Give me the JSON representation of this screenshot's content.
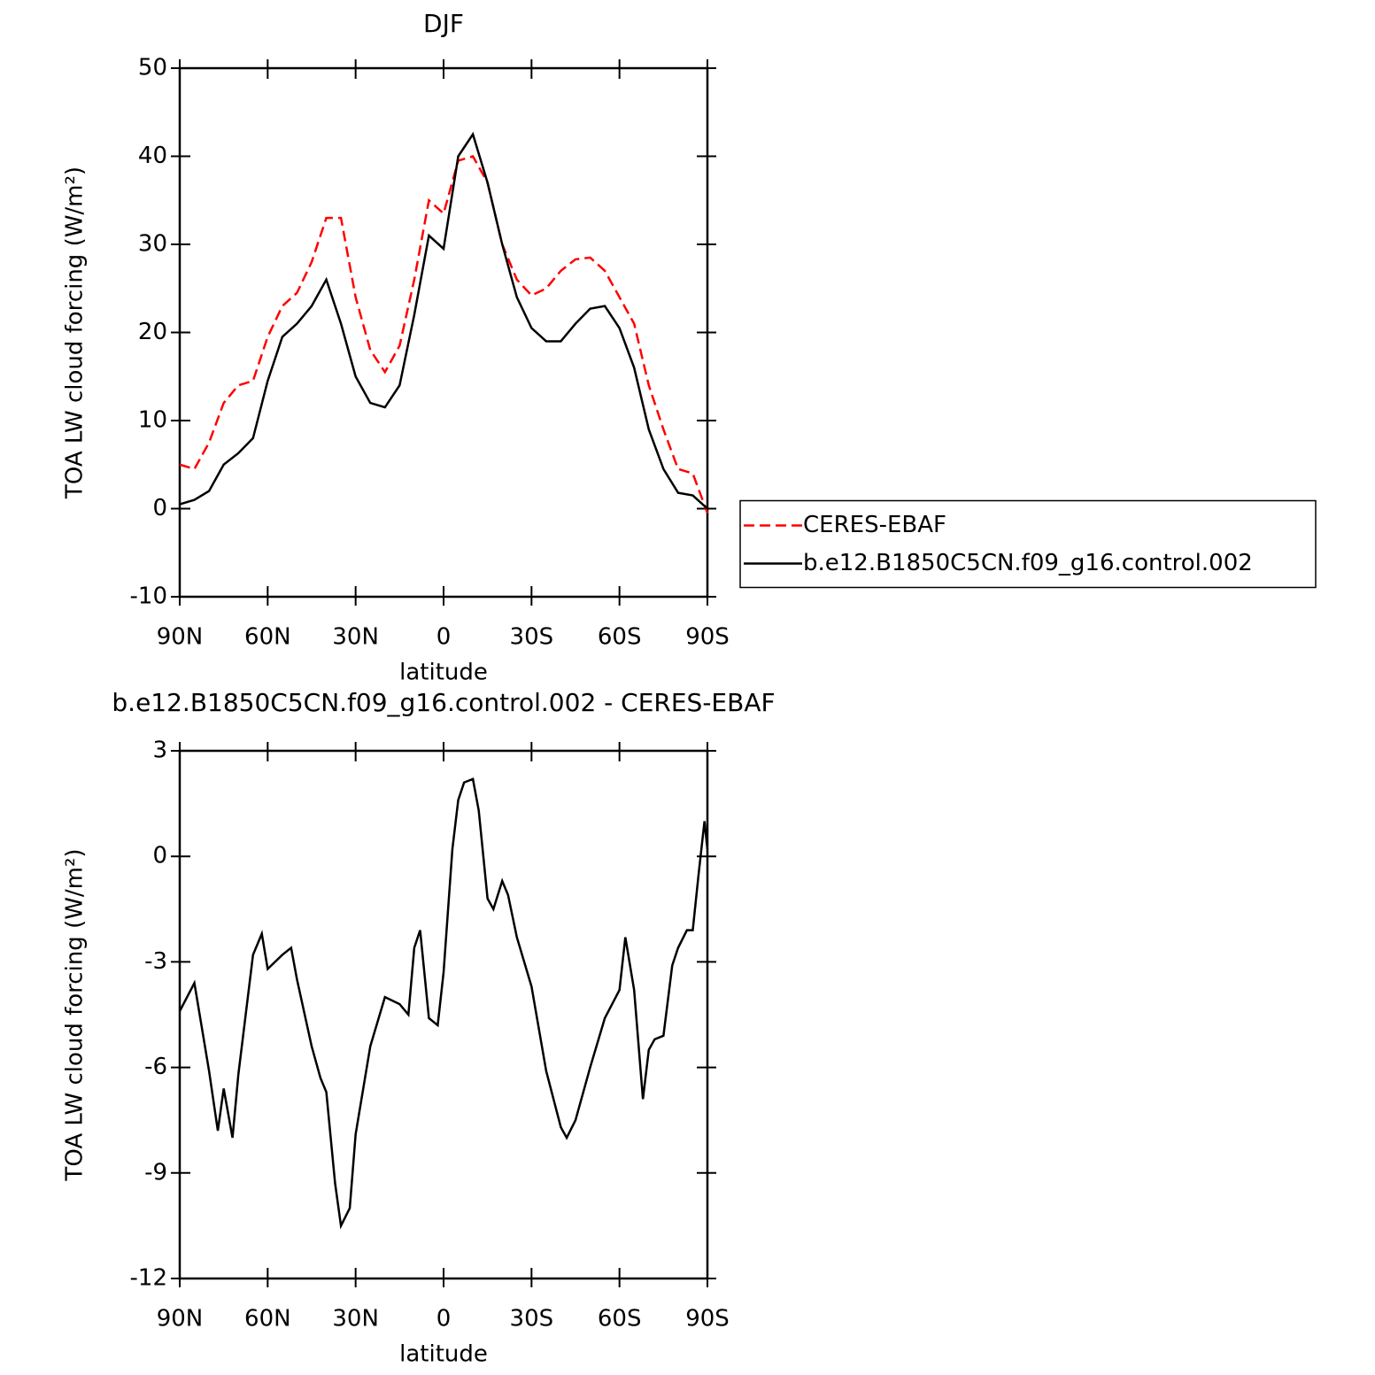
{
  "chart_data": [
    {
      "type": "line",
      "title": "DJF",
      "xlabel": "latitude",
      "ylabel": "TOA LW cloud forcing (W/m²)",
      "x": [
        90,
        85,
        80,
        75,
        70,
        65,
        60,
        55,
        50,
        45,
        40,
        35,
        30,
        25,
        20,
        15,
        10,
        5,
        0,
        -5,
        -10,
        -15,
        -20,
        -25,
        -30,
        -35,
        -40,
        -45,
        -50,
        -55,
        -60,
        -65,
        -70,
        -75,
        -80,
        -85,
        -90
      ],
      "xlim": [
        90,
        -90
      ],
      "xticks": [
        {
          "value": 90,
          "label": "90N"
        },
        {
          "value": 60,
          "label": "60N"
        },
        {
          "value": 30,
          "label": "30N"
        },
        0,
        {
          "value": -30,
          "label": "30S"
        },
        {
          "value": -60,
          "label": "60S"
        },
        {
          "value": -90,
          "label": "90S"
        }
      ],
      "ylim": [
        -10,
        50
      ],
      "yticks": [
        -10,
        0,
        10,
        20,
        30,
        40,
        50
      ],
      "legend": "right",
      "series": [
        {
          "name": "CERES-EBAF",
          "color": "#ff0000",
          "line_style": "dashed",
          "values": [
            5,
            4.5,
            7.5,
            12,
            14,
            14.5,
            19.5,
            23,
            24.5,
            28,
            33,
            33,
            24,
            18,
            15.5,
            18.5,
            26,
            35,
            33.5,
            39.5,
            40,
            37,
            30,
            26,
            24.2,
            25,
            27,
            28.3,
            28.5,
            27,
            24,
            21,
            14,
            9,
            4.5,
            4,
            -0.5
          ]
        },
        {
          "name": "b.e12.B1850C5CN.f09_g16.control.002",
          "color": "#000000",
          "line_style": "solid",
          "values": [
            0.5,
            1,
            2,
            5,
            6.3,
            8,
            14.5,
            19.5,
            21,
            23,
            26,
            21,
            15,
            12,
            11.5,
            14,
            22,
            31,
            29.5,
            40,
            42.5,
            37,
            30,
            24,
            20.5,
            19,
            19,
            21,
            22.7,
            23,
            20.5,
            16,
            9,
            4.5,
            1.8,
            1.5,
            0
          ]
        }
      ]
    },
    {
      "type": "line",
      "title": "b.e12.B1850C5CN.f09_g16.control.002 - CERES-EBAF",
      "xlabel": "latitude",
      "ylabel": "TOA LW cloud forcing (W/m²)",
      "x": [
        90,
        85,
        80,
        77,
        75,
        72,
        70,
        65,
        62,
        60,
        55,
        52,
        50,
        45,
        42,
        40,
        37,
        35,
        32,
        30,
        25,
        20,
        15,
        12,
        10,
        8,
        5,
        2,
        0,
        -3,
        -5,
        -7,
        -10,
        -12,
        -15,
        -17,
        -20,
        -22,
        -25,
        -30,
        -35,
        -40,
        -42,
        -45,
        -50,
        -55,
        -60,
        -62,
        -65,
        -68,
        -70,
        -72,
        -75,
        -78,
        -80,
        -83,
        -85,
        -87,
        -89,
        -90
      ],
      "xlim": [
        90,
        -90
      ],
      "xticks": [
        {
          "value": 90,
          "label": "90N"
        },
        {
          "value": 60,
          "label": "60N"
        },
        {
          "value": 30,
          "label": "30N"
        },
        0,
        {
          "value": -30,
          "label": "30S"
        },
        {
          "value": -60,
          "label": "60S"
        },
        {
          "value": -90,
          "label": "90S"
        }
      ],
      "ylim": [
        -12,
        3
      ],
      "yticks": [
        -12,
        -9,
        -6,
        -3,
        0,
        3
      ],
      "series": [
        {
          "color": "#000000",
          "line_style": "solid",
          "values": [
            -4.4,
            -3.6,
            -6.1,
            -7.8,
            -6.6,
            -8,
            -6.2,
            -2.8,
            -2.2,
            -3.2,
            -2.8,
            -2.6,
            -3.5,
            -5.4,
            -6.3,
            -6.7,
            -9.3,
            -10.5,
            -10,
            -7.9,
            -5.4,
            -4,
            -4.2,
            -4.5,
            -2.6,
            -2.1,
            -4.6,
            -4.8,
            -3.3,
            0.2,
            1.6,
            2.1,
            2.2,
            1.3,
            -1.2,
            -1.5,
            -0.7,
            -1.1,
            -2.3,
            -3.7,
            -6.1,
            -7.7,
            -8,
            -7.5,
            -6,
            -4.6,
            -3.8,
            -2.3,
            -3.8,
            -6.9,
            -5.5,
            -5.2,
            -5.1,
            -3.1,
            -2.6,
            -2.1,
            -2.1,
            -0.5,
            1,
            0.2
          ]
        }
      ]
    }
  ]
}
